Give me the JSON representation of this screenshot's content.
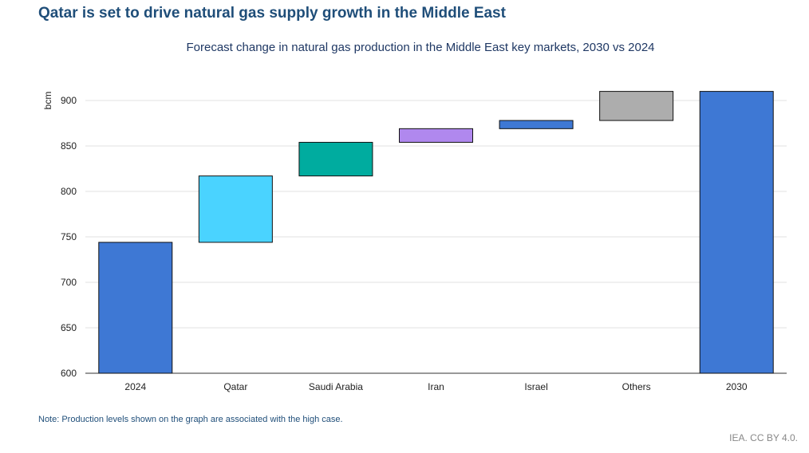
{
  "title": "Qatar is set to drive natural gas supply growth in the Middle East",
  "note": "Note: Production levels shown on the graph are associated with the high case.",
  "credit": "IEA. CC BY 4.0.",
  "chart_data": {
    "type": "waterfall",
    "title": "Forecast change in natural gas production in the Middle East key markets, 2030 vs 2024",
    "ylabel": "bcm",
    "ylim": [
      600,
      920
    ],
    "yticks": [
      600,
      650,
      700,
      750,
      800,
      850,
      900
    ],
    "grid": true,
    "categories": [
      "2024",
      "Qatar",
      "Saudi Arabia",
      "Iran",
      "Israel",
      "Others",
      "2030"
    ],
    "bars": [
      {
        "label": "2024",
        "kind": "total",
        "value": 744,
        "color": "#3e78d4"
      },
      {
        "label": "Qatar",
        "kind": "delta",
        "value": 73,
        "color": "#4ad3ff"
      },
      {
        "label": "Saudi Arabia",
        "kind": "delta",
        "value": 37,
        "color": "#00ac9f"
      },
      {
        "label": "Iran",
        "kind": "delta",
        "value": 15,
        "color": "#b088ee"
      },
      {
        "label": "Israel",
        "kind": "delta",
        "value": 9,
        "color": "#3e78d4"
      },
      {
        "label": "Others",
        "kind": "delta",
        "value": 32,
        "color": "#adadad"
      },
      {
        "label": "2030",
        "kind": "total",
        "value": 910,
        "color": "#3e78d4"
      }
    ]
  }
}
